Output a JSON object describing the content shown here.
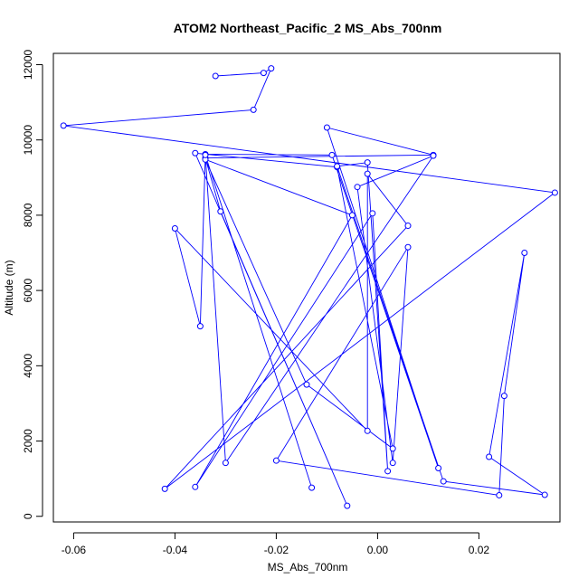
{
  "chart_data": {
    "type": "line",
    "title": "ATOM2 Northeast_Pacific_2 MS_Abs_700nm",
    "xlabel": "MS_Abs_700nm",
    "ylabel": "Altitude (m)",
    "xlim": [
      -0.064,
      0.036
    ],
    "ylim": [
      -150,
      12300
    ],
    "xticks": [
      -0.06,
      -0.04,
      -0.02,
      0.0,
      0.02
    ],
    "xtick_labels": [
      "-0.06",
      "-0.04",
      "-0.02",
      "0.00",
      "0.02"
    ],
    "yticks": [
      0,
      2000,
      4000,
      6000,
      8000,
      10000,
      12000
    ],
    "ytick_labels": [
      "0",
      "2000",
      "4000",
      "6000",
      "8000",
      "10000",
      "12000"
    ],
    "series_color": "#0000ff",
    "marker": "open-circle",
    "grid": false,
    "legend": "none",
    "points": [
      {
        "x": -0.032,
        "y": 11700
      },
      {
        "x": -0.0225,
        "y": 11780
      },
      {
        "x": -0.021,
        "y": 11900
      },
      {
        "x": -0.0245,
        "y": 10800
      },
      {
        "x": -0.062,
        "y": 10380
      },
      {
        "x": 0.035,
        "y": 8600
      },
      {
        "x": -0.042,
        "y": 730
      },
      {
        "x": 0.006,
        "y": 7720
      },
      {
        "x": -0.002,
        "y": 9100
      },
      {
        "x": -0.002,
        "y": 2270
      },
      {
        "x": -0.04,
        "y": 7650
      },
      {
        "x": -0.035,
        "y": 5050
      },
      {
        "x": -0.034,
        "y": 9620
      },
      {
        "x": -0.009,
        "y": 9600
      },
      {
        "x": 0.012,
        "y": 1280
      },
      {
        "x": -0.01,
        "y": 10330
      },
      {
        "x": 0.011,
        "y": 9600
      },
      {
        "x": -0.034,
        "y": 9520
      },
      {
        "x": -0.031,
        "y": 8100
      },
      {
        "x": -0.006,
        "y": 280
      },
      {
        "x": -0.036,
        "y": 9650
      },
      {
        "x": -0.008,
        "y": 9280
      },
      {
        "x": 0.003,
        "y": 1800
      },
      {
        "x": -0.014,
        "y": 3500
      },
      {
        "x": -0.034,
        "y": 9480
      },
      {
        "x": -0.005,
        "y": 8000
      },
      {
        "x": -0.036,
        "y": 780
      },
      {
        "x": -0.001,
        "y": 8050
      },
      {
        "x": 0.002,
        "y": 1200
      },
      {
        "x": -0.002,
        "y": 9400
      },
      {
        "x": -0.008,
        "y": 9300
      },
      {
        "x": 0.013,
        "y": 930
      },
      {
        "x": 0.033,
        "y": 570
      },
      {
        "x": 0.022,
        "y": 1580
      },
      {
        "x": 0.029,
        "y": 7000
      },
      {
        "x": 0.025,
        "y": 3200
      },
      {
        "x": 0.024,
        "y": 560
      },
      {
        "x": -0.02,
        "y": 1480
      },
      {
        "x": 0.006,
        "y": 7150
      },
      {
        "x": 0.003,
        "y": 1420
      },
      {
        "x": -0.004,
        "y": 8750
      },
      {
        "x": 0.011,
        "y": 9580
      },
      {
        "x": -0.03,
        "y": 1420
      },
      {
        "x": -0.034,
        "y": 9600
      },
      {
        "x": -0.013,
        "y": 760
      }
    ]
  }
}
